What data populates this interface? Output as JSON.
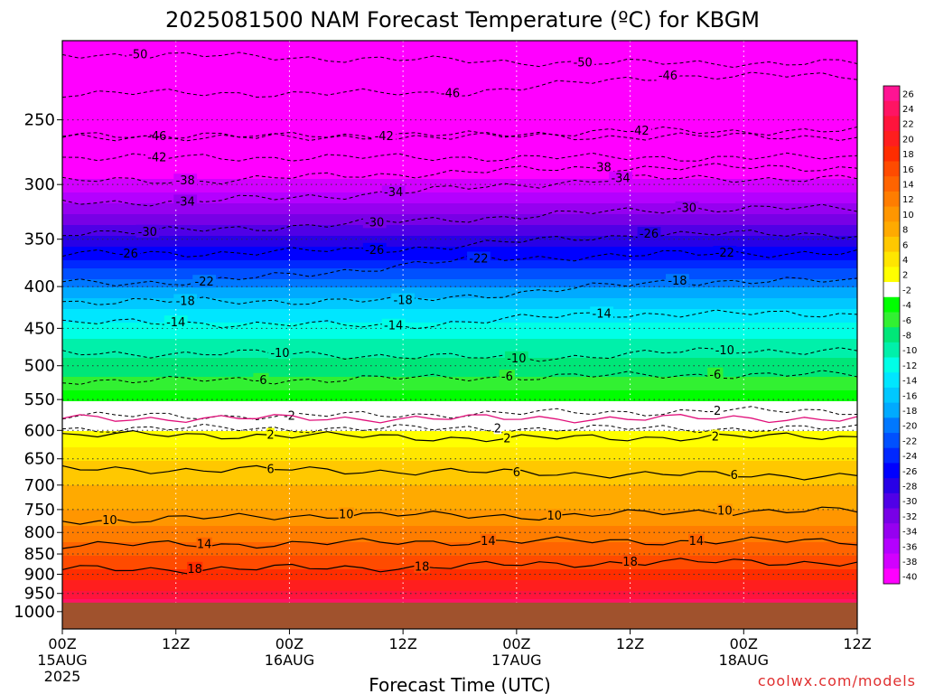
{
  "chart_data": {
    "type": "heatmap",
    "title": "2025081500 NAM Forecast Temperature (ºC) for KBGM",
    "xlabel": "Forecast Time (UTC)",
    "ylabel": "",
    "credit": "coolwx.com/models",
    "y_scale": "log",
    "y_unit": "hPa",
    "ylim": [
      1050,
      200
    ],
    "xlim_hours": [
      0,
      84
    ],
    "y_ticks": [
      250,
      300,
      350,
      400,
      450,
      500,
      550,
      600,
      650,
      700,
      750,
      800,
      850,
      900,
      950,
      1000
    ],
    "x_ticks": [
      {
        "hour": 0,
        "lines": [
          "00Z",
          "15AUG",
          "2025"
        ]
      },
      {
        "hour": 12,
        "lines": [
          "12Z"
        ]
      },
      {
        "hour": 24,
        "lines": [
          "00Z",
          "16AUG"
        ]
      },
      {
        "hour": 36,
        "lines": [
          "12Z"
        ]
      },
      {
        "hour": 48,
        "lines": [
          "00Z",
          "17AUG"
        ]
      },
      {
        "hour": 60,
        "lines": [
          "12Z"
        ]
      },
      {
        "hour": 72,
        "lines": [
          "00Z",
          "18AUG"
        ]
      },
      {
        "hour": 84,
        "lines": [
          "12Z"
        ]
      }
    ],
    "surface_pressure": 975,
    "surface_color": "#a0522d",
    "colorbar": {
      "labels": [
        "26",
        "24",
        "22",
        "20",
        "18",
        "16",
        "14",
        "12",
        "10",
        "8",
        "6",
        "4",
        "2",
        "-2",
        "-4",
        "-6",
        "-8",
        "-10",
        "-12",
        "-14",
        "-16",
        "-18",
        "-20",
        "-22",
        "-24",
        "-26",
        "-28",
        "-30",
        "-32",
        "-34",
        "-36",
        "-38",
        "-40"
      ],
      "colors": [
        "#ff1493",
        "#ff1463",
        "#ff143c",
        "#ff1e1e",
        "#ff2d00",
        "#ff4b00",
        "#ff6400",
        "#ff7d00",
        "#ff9600",
        "#ffaa00",
        "#ffc800",
        "#ffe600",
        "#ffff00",
        "#ffffff",
        "#00ff00",
        "#32f032",
        "#00e678",
        "#00f0aa",
        "#00ffe6",
        "#00e6ff",
        "#00c8ff",
        "#00aaff",
        "#0078ff",
        "#0050ff",
        "#0028ff",
        "#0000ff",
        "#2800e6",
        "#5000e6",
        "#7800e6",
        "#9600f0",
        "#b400ff",
        "#d200ff",
        "#ff00ff"
      ]
    },
    "levels": [
      {
        "p": 200,
        "t": -55
      },
      {
        "p": 250,
        "t": -47
      },
      {
        "p": 280,
        "t": -42
      },
      {
        "p": 300,
        "t": -38
      },
      {
        "p": 320,
        "t": -34
      },
      {
        "p": 350,
        "t": -28
      },
      {
        "p": 375,
        "t": -24
      },
      {
        "p": 400,
        "t": -19
      },
      {
        "p": 425,
        "t": -15
      },
      {
        "p": 450,
        "t": -12
      },
      {
        "p": 475,
        "t": -10
      },
      {
        "p": 500,
        "t": -8
      },
      {
        "p": 525,
        "t": -6
      },
      {
        "p": 550,
        "t": -3
      },
      {
        "p": 570,
        "t": -1
      },
      {
        "p": 600,
        "t": 2
      },
      {
        "p": 625,
        "t": 3
      },
      {
        "p": 650,
        "t": 5
      },
      {
        "p": 700,
        "t": 7
      },
      {
        "p": 750,
        "t": 9
      },
      {
        "p": 800,
        "t": 12
      },
      {
        "p": 850,
        "t": 15
      },
      {
        "p": 900,
        "t": 18
      },
      {
        "p": 925,
        "t": 20
      },
      {
        "p": 950,
        "t": 22
      },
      {
        "p": 975,
        "t": 24
      }
    ],
    "contours": [
      {
        "value": -50,
        "style": "dashed",
        "label_pos": [
          [
            8,
            208
          ],
          [
            55,
            213
          ]
        ]
      },
      {
        "value": -46,
        "style": "dashed",
        "label_pos": [
          [
            41,
            232
          ],
          [
            64,
            221
          ]
        ]
      },
      {
        "value": -46,
        "style": "dashed",
        "label_pos": [
          [
            10,
            262
          ]
        ]
      },
      {
        "value": -42,
        "style": "dashed",
        "label_pos": [
          [
            34,
            262
          ],
          [
            61,
            258
          ]
        ]
      },
      {
        "value": -42,
        "style": "dashed",
        "label_pos": [
          [
            10,
            278
          ]
        ]
      },
      {
        "value": -38,
        "style": "dashed",
        "label_pos": [
          [
            13,
            297
          ],
          [
            57,
            286
          ]
        ]
      },
      {
        "value": -34,
        "style": "dashed",
        "label_pos": [
          [
            13,
            315
          ],
          [
            35,
            307
          ],
          [
            59,
            295
          ]
        ]
      },
      {
        "value": -30,
        "style": "dashed",
        "label_pos": [
          [
            9,
            343
          ],
          [
            33,
            334
          ],
          [
            66,
            321
          ]
        ]
      },
      {
        "value": -26,
        "style": "dashed",
        "label_pos": [
          [
            7,
            365
          ],
          [
            33,
            361
          ],
          [
            62,
            345
          ]
        ]
      },
      {
        "value": -22,
        "style": "dashed",
        "label_pos": [
          [
            15,
            395
          ],
          [
            44,
            370
          ],
          [
            70,
            364
          ]
        ]
      },
      {
        "value": -18,
        "style": "dashed",
        "label_pos": [
          [
            13,
            417
          ],
          [
            36,
            416
          ],
          [
            65,
            394
          ]
        ]
      },
      {
        "value": -14,
        "style": "dashed",
        "label_pos": [
          [
            12,
            443
          ],
          [
            35,
            447
          ],
          [
            57,
            432
          ]
        ]
      },
      {
        "value": -10,
        "style": "dashed",
        "label_pos": [
          [
            23,
            483
          ],
          [
            48,
            490
          ],
          [
            70,
            479
          ]
        ]
      },
      {
        "value": -6,
        "style": "dashed",
        "label_pos": [
          [
            21,
            521
          ],
          [
            47,
            516
          ],
          [
            69,
            513
          ]
        ]
      },
      {
        "value": -2,
        "style": "dashed",
        "label_pos": [
          [
            24,
            576
          ],
          [
            69,
            568
          ]
        ]
      },
      {
        "value": 0,
        "style": "magenta",
        "label_pos": []
      },
      {
        "value": 2,
        "style": "dashed",
        "label_pos": [
          [
            46,
            597
          ]
        ]
      },
      {
        "value": 2,
        "style": "solid",
        "label_pos": [
          [
            22,
            608
          ],
          [
            47,
            614
          ],
          [
            69,
            611
          ]
        ]
      },
      {
        "value": 6,
        "style": "solid",
        "label_pos": [
          [
            22,
            670
          ],
          [
            48,
            676
          ],
          [
            71,
            681
          ]
        ]
      },
      {
        "value": 10,
        "style": "solid",
        "label_pos": [
          [
            5,
            773
          ],
          [
            30,
            761
          ],
          [
            52,
            764
          ],
          [
            70,
            753
          ]
        ]
      },
      {
        "value": 14,
        "style": "solid",
        "label_pos": [
          [
            15,
            828
          ],
          [
            45,
            820
          ],
          [
            67,
            820
          ]
        ]
      },
      {
        "value": 18,
        "style": "solid",
        "label_pos": [
          [
            14,
            887
          ],
          [
            38,
            882
          ],
          [
            60,
            870
          ]
        ]
      }
    ]
  }
}
